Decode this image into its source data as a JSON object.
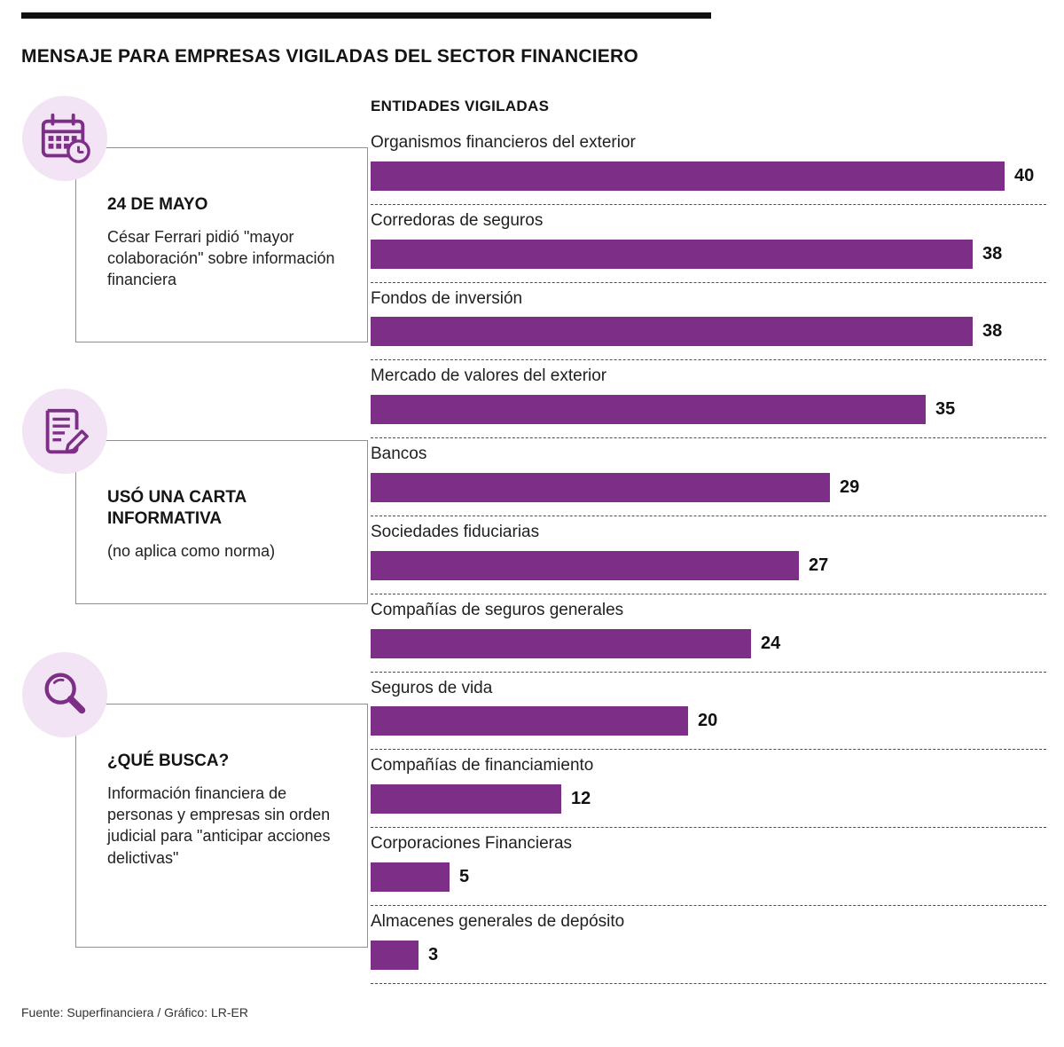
{
  "header": {
    "title": "MENSAJE PARA EMPRESAS VIGILADAS DEL SECTOR FINANCIERO"
  },
  "info_boxes": [
    {
      "icon": "calendar-clock-icon",
      "heading": "24 DE MAYO",
      "body": "César Ferrari pidió \"mayor colaboración\" sobre información financiera"
    },
    {
      "icon": "document-pencil-icon",
      "heading": "USÓ UNA CARTA INFORMATIVA",
      "body": "(no aplica como norma)"
    },
    {
      "icon": "magnifier-icon",
      "heading": "¿QUÉ BUSCA?",
      "body": "Información financiera de personas y empresas sin orden judicial para \"anticipar acciones delictivas\""
    }
  ],
  "chart_data": {
    "type": "bar",
    "orientation": "horizontal",
    "title": "ENTIDADES VIGILADAS",
    "categories": [
      "Organismos financieros del exterior",
      "Corredoras de seguros",
      "Fondos de inversión",
      "Mercado de valores del exterior",
      "Bancos",
      "Sociedades fiduciarias",
      "Compañías de seguros generales",
      "Seguros de vida",
      "Compañías de financiamiento",
      "Corporaciones Financieras",
      "Almacenes generales de depósito"
    ],
    "values": [
      40,
      38,
      38,
      35,
      29,
      27,
      24,
      20,
      12,
      5,
      3
    ],
    "xlim": [
      0,
      40
    ],
    "bar_color": "#7d2f88",
    "grid": "dashed-row-separators",
    "value_labels": "end-of-bar"
  },
  "footer": {
    "source": "Fuente: Superfinanciera / Gráfico: LR-ER"
  },
  "colors": {
    "accent": "#7d2f88",
    "icon_background": "#f2e4f4",
    "title_rule": "#111111",
    "dashed_separator": "#4d4d4d"
  }
}
